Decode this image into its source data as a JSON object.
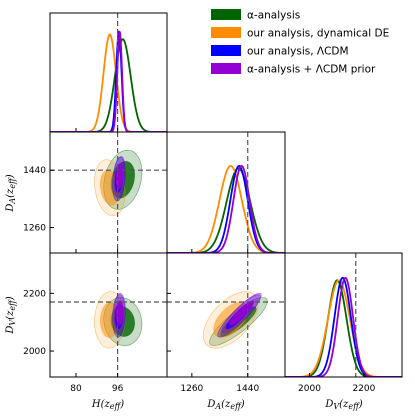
{
  "chart_data": {
    "type": "corner",
    "parameters": [
      {
        "name": "H",
        "label": "H(z_eff)",
        "range": [
          70,
          115
        ],
        "ticks": [
          80,
          96
        ],
        "marker": 96
      },
      {
        "name": "DA",
        "label": "D_A(z_eff)",
        "range": [
          1180,
          1560
        ],
        "ticks": [
          1260,
          1440
        ],
        "marker": 1440
      },
      {
        "name": "DV",
        "label": "D_V(z_eff)",
        "range": [
          1910,
          2340
        ],
        "ticks": [
          2000,
          2200
        ],
        "marker": 2170
      }
    ],
    "series": [
      {
        "name": "α-analysis",
        "color": "#006400",
        "alpha": 0.22,
        "mean": [
          98.0,
          1410,
          2102
        ],
        "sd": [
          3.0,
          38,
          34
        ],
        "corr": [
          0.25,
          -0.1,
          0.85
        ],
        "peaks": [
          0.78,
          0.7,
          0.78
        ]
      },
      {
        "name": "our analysis, dynamical DE",
        "color": "#ff8c00",
        "alpha": 0.14,
        "mean": [
          93.0,
          1385,
          2108
        ],
        "sd": [
          2.4,
          36,
          40
        ],
        "corr": [
          -0.2,
          0.05,
          0.55
        ],
        "peaks": [
          0.82,
          0.72,
          0.78
        ]
      },
      {
        "name": "our analysis, ΛCDM",
        "color": "#0000ff",
        "alpha": 0.3,
        "mean": [
          96.5,
          1412,
          2122
        ],
        "sd": [
          1.0,
          28,
          30
        ],
        "corr": [
          0.25,
          0.1,
          0.9
        ],
        "peaks": [
          0.85,
          0.72,
          0.8
        ]
      },
      {
        "name": "α-analysis +  ΛCDM prior",
        "color": "#9400d3",
        "alpha": 0.35,
        "mean": [
          96.8,
          1420,
          2132
        ],
        "sd": [
          0.9,
          26,
          28
        ],
        "corr": [
          0.25,
          0.1,
          0.9
        ],
        "peaks": [
          0.85,
          0.72,
          0.8
        ]
      }
    ],
    "legend": {
      "position": "top-right"
    },
    "axes_labels": {
      "x": [
        "H(z_eff)",
        "D_A(z_eff)",
        "D_V(z_eff)"
      ],
      "y": [
        "D_A(z_eff)",
        "D_V(z_eff)"
      ]
    }
  }
}
